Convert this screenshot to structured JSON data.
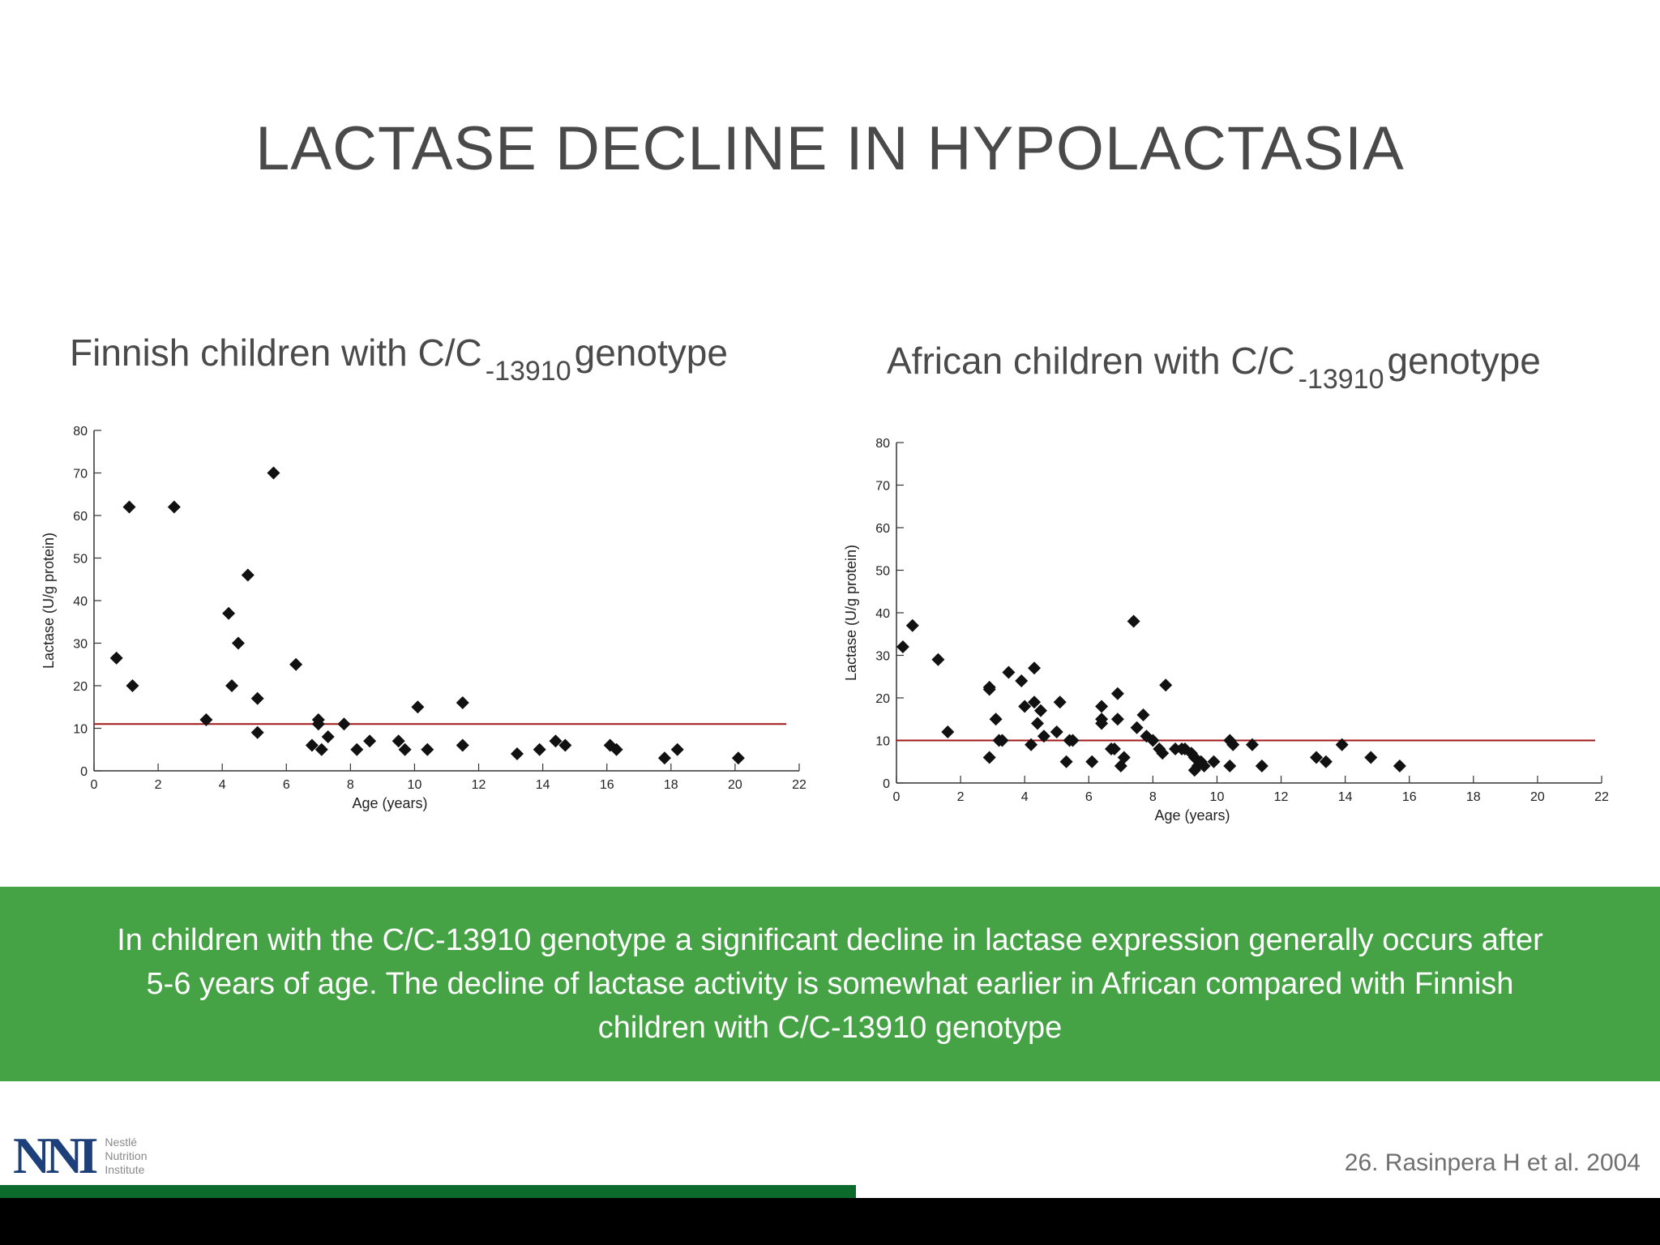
{
  "slide": {
    "title": "LACTASE DECLINE IN HYPOLACTASIA",
    "summary": "In children with the C/C-13910 genotype a significant decline in lactase expression generally occurs after 5-6 years of age. The decline of lactase activity is somewhat earlier in African compared with Finnish children with C/C-13910 genotype",
    "citation": "26. Rasinpera H et al. 2004",
    "logo": {
      "mark": "NNI",
      "line1": "Nestlé",
      "line2": "Nutrition",
      "line3": "Institute"
    }
  },
  "colors": {
    "banner": "#45a245",
    "bar_green": "#0c6b2c",
    "threshold_line": "#a01818",
    "points": "#111111"
  },
  "chart_data": [
    {
      "type": "scatter",
      "title_pre": "Finnish children with C/C",
      "title_sub": "-13910",
      "title_post": "genotype",
      "xlabel": "Age (years)",
      "ylabel": "Lactase (U/g protein)",
      "xlim": [
        0,
        22
      ],
      "ylim": [
        0,
        80
      ],
      "xticks": [
        0,
        2,
        4,
        6,
        8,
        10,
        12,
        14,
        16,
        18,
        20,
        22
      ],
      "yticks": [
        0,
        10,
        20,
        30,
        40,
        50,
        60,
        70,
        80
      ],
      "threshold": 11,
      "threshold_x": [
        0,
        21.6
      ],
      "points": [
        [
          0.7,
          26.5
        ],
        [
          1.1,
          62
        ],
        [
          1.2,
          20
        ],
        [
          2.5,
          62
        ],
        [
          3.5,
          12
        ],
        [
          4.2,
          37
        ],
        [
          4.3,
          20
        ],
        [
          4.5,
          30
        ],
        [
          4.8,
          46
        ],
        [
          5.1,
          17
        ],
        [
          5.1,
          9
        ],
        [
          5.6,
          70
        ],
        [
          6.3,
          25
        ],
        [
          6.8,
          6
        ],
        [
          7.0,
          12
        ],
        [
          7.0,
          11
        ],
        [
          7.1,
          5
        ],
        [
          7.3,
          8
        ],
        [
          7.8,
          11
        ],
        [
          8.2,
          5
        ],
        [
          8.6,
          7
        ],
        [
          9.5,
          7
        ],
        [
          9.7,
          5
        ],
        [
          10.1,
          15
        ],
        [
          10.4,
          5
        ],
        [
          11.5,
          16
        ],
        [
          11.5,
          6
        ],
        [
          13.2,
          4
        ],
        [
          13.9,
          5
        ],
        [
          14.4,
          7
        ],
        [
          14.7,
          6
        ],
        [
          16.1,
          6
        ],
        [
          16.3,
          5
        ],
        [
          17.8,
          3
        ],
        [
          18.2,
          5
        ],
        [
          20.1,
          3
        ]
      ]
    },
    {
      "type": "scatter",
      "title_pre": "African children with C/C",
      "title_sub": "-13910",
      "title_post": "genotype",
      "xlabel": "Age (years)",
      "ylabel": "Lactase (U/g protein)",
      "xlim": [
        0,
        22
      ],
      "ylim": [
        0,
        80
      ],
      "xticks": [
        0,
        2,
        4,
        6,
        8,
        10,
        12,
        14,
        16,
        18,
        20,
        22
      ],
      "yticks": [
        0,
        10,
        20,
        30,
        40,
        50,
        60,
        70,
        80
      ],
      "threshold": 10,
      "threshold_x": [
        0,
        21.8
      ],
      "points": [
        [
          0.2,
          32
        ],
        [
          0.5,
          37
        ],
        [
          1.3,
          29
        ],
        [
          1.6,
          12
        ],
        [
          2.9,
          22.5
        ],
        [
          2.9,
          22
        ],
        [
          2.9,
          6
        ],
        [
          3.1,
          15
        ],
        [
          3.2,
          10
        ],
        [
          3.3,
          10
        ],
        [
          3.5,
          26
        ],
        [
          3.9,
          24
        ],
        [
          4.0,
          18
        ],
        [
          4.2,
          9
        ],
        [
          4.3,
          27
        ],
        [
          4.3,
          19
        ],
        [
          4.4,
          14
        ],
        [
          4.5,
          17
        ],
        [
          4.6,
          11
        ],
        [
          5.0,
          12
        ],
        [
          5.1,
          19
        ],
        [
          5.3,
          5
        ],
        [
          5.4,
          10
        ],
        [
          5.5,
          10
        ],
        [
          6.1,
          5
        ],
        [
          6.4,
          18
        ],
        [
          6.4,
          15
        ],
        [
          6.4,
          14
        ],
        [
          6.7,
          8
        ],
        [
          6.8,
          8
        ],
        [
          6.9,
          21
        ],
        [
          6.9,
          15
        ],
        [
          7.0,
          4
        ],
        [
          7.1,
          6
        ],
        [
          7.4,
          38
        ],
        [
          7.5,
          13
        ],
        [
          7.7,
          16
        ],
        [
          7.8,
          11
        ],
        [
          8.0,
          10
        ],
        [
          8.2,
          8
        ],
        [
          8.3,
          7
        ],
        [
          8.4,
          23
        ],
        [
          8.7,
          8
        ],
        [
          8.9,
          8
        ],
        [
          9.0,
          8
        ],
        [
          9.2,
          7
        ],
        [
          9.3,
          3
        ],
        [
          9.3,
          6
        ],
        [
          9.4,
          4
        ],
        [
          9.5,
          5
        ],
        [
          9.6,
          4
        ],
        [
          9.9,
          5
        ],
        [
          10.4,
          10
        ],
        [
          10.4,
          4
        ],
        [
          10.5,
          9
        ],
        [
          11.1,
          9
        ],
        [
          11.4,
          4
        ],
        [
          13.1,
          6
        ],
        [
          13.4,
          5
        ],
        [
          13.9,
          9
        ],
        [
          14.8,
          6
        ],
        [
          15.7,
          4
        ]
      ]
    }
  ]
}
